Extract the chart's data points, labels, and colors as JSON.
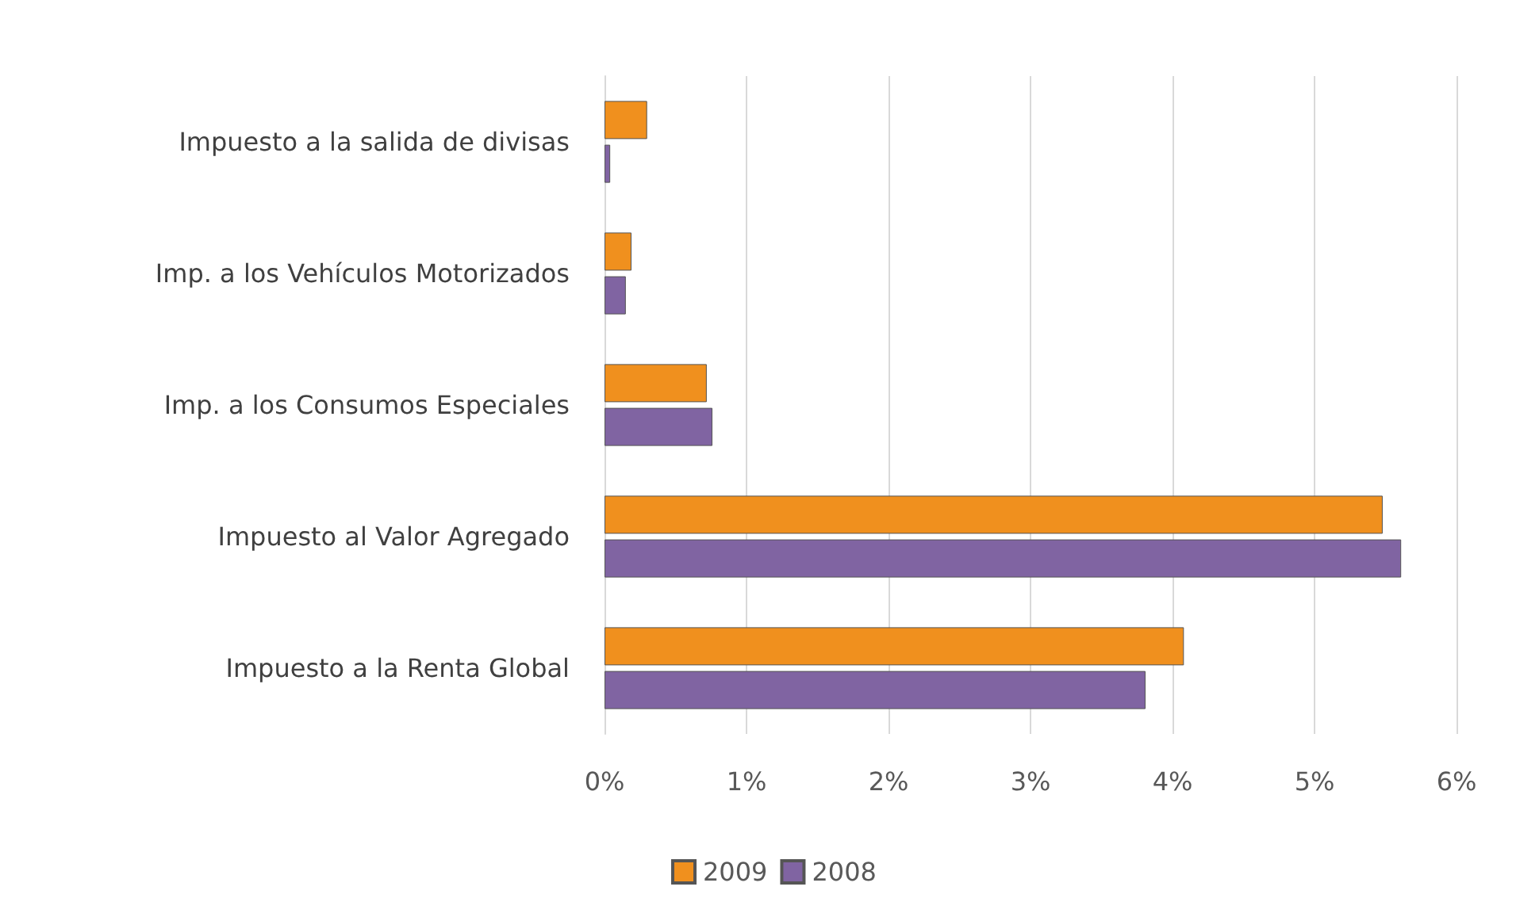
{
  "chart_data": {
    "type": "bar",
    "orientation": "horizontal",
    "categories": [
      "Impuesto a la salida de divisas",
      "Imp. a los Vehículos Motorizados",
      "Imp. a los Consumos Especiales",
      "Impuesto al Valor Agregado",
      "Impuesto a la Renta Global"
    ],
    "series": [
      {
        "name": "2009",
        "color": "#f0901e",
        "values": [
          0.3,
          0.19,
          0.72,
          5.48,
          4.08
        ]
      },
      {
        "name": "2008",
        "color": "#8064a2",
        "values": [
          0.04,
          0.15,
          0.76,
          5.61,
          3.81
        ]
      }
    ],
    "xlim": [
      0,
      6
    ],
    "xticks": [
      {
        "value": 0,
        "label": "0%"
      },
      {
        "value": 1,
        "label": "1%"
      },
      {
        "value": 2,
        "label": "2%"
      },
      {
        "value": 3,
        "label": "3%"
      },
      {
        "value": 4,
        "label": "4%"
      },
      {
        "value": 5,
        "label": "5%"
      },
      {
        "value": 6,
        "label": "6%"
      }
    ],
    "grid": "x",
    "legend": "bottom"
  }
}
